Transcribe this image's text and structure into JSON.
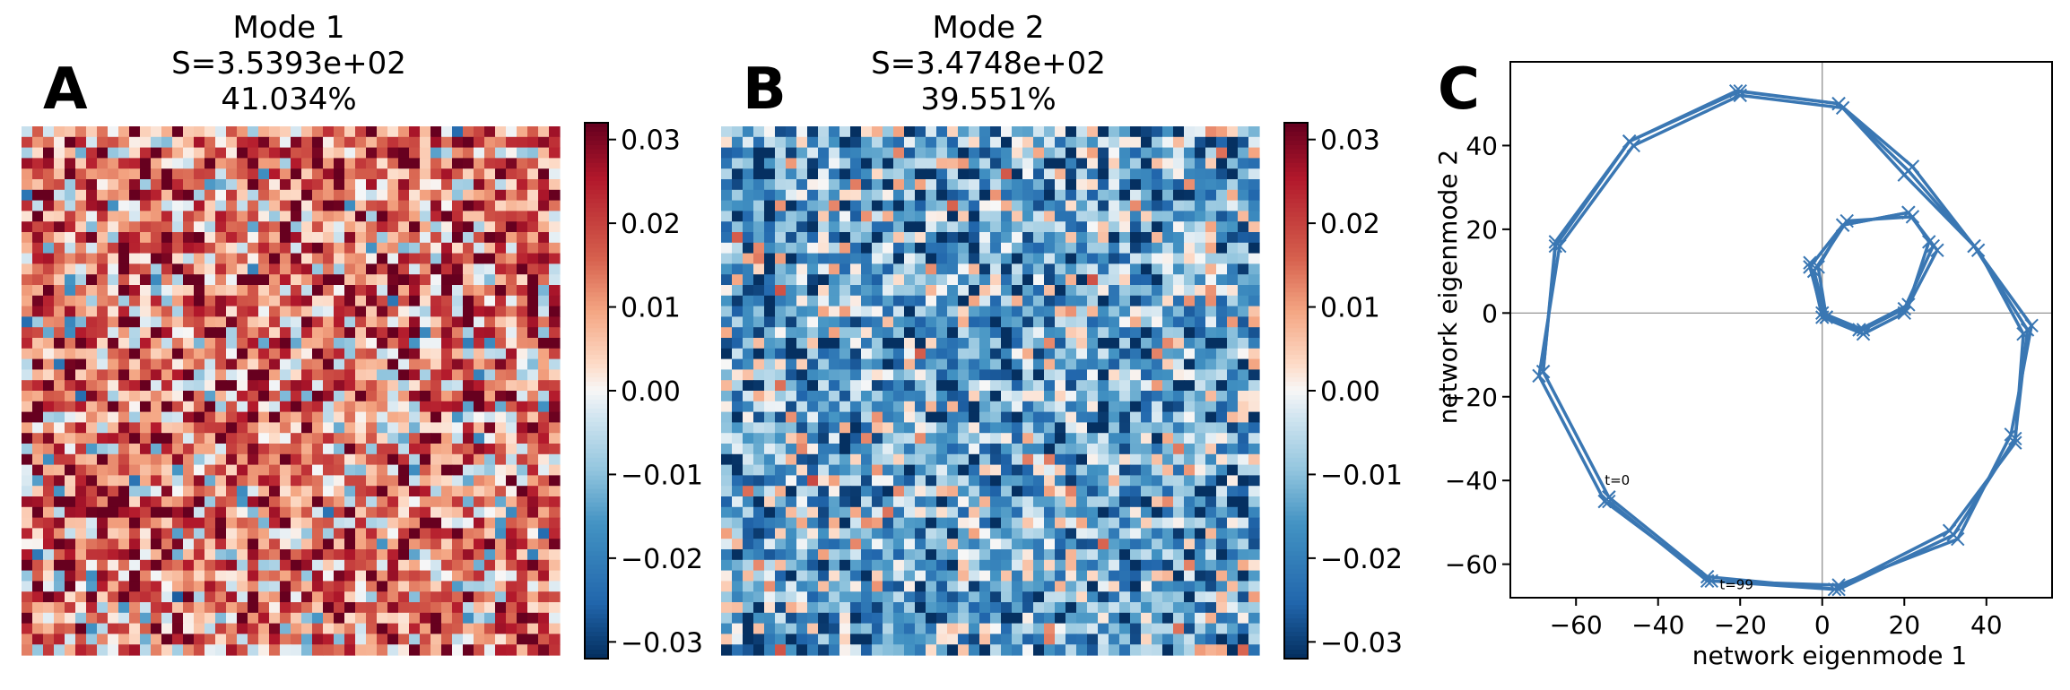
{
  "figure": {
    "panels": [
      "A",
      "B",
      "C"
    ]
  },
  "chart_data": [
    {
      "type": "heatmap",
      "panel_label": "A",
      "title_lines": [
        "Mode 1",
        "S=3.5393e+02",
        "41.034%"
      ],
      "grid": [
        50,
        50
      ],
      "colormap": "RdBu_r",
      "clim": [
        -0.032,
        0.032
      ],
      "colorbar_ticks": [
        "0.03",
        "0.02",
        "0.01",
        "0.00",
        "−0.01",
        "−0.02",
        "−0.03"
      ],
      "colorbar_tick_values": [
        0.03,
        0.02,
        0.01,
        0.0,
        -0.01,
        -0.02,
        -0.03
      ],
      "value_distribution": {
        "mean": 0.013,
        "spread": 0.016,
        "seed": 11
      }
    },
    {
      "type": "heatmap",
      "panel_label": "B",
      "title_lines": [
        "Mode 2",
        "S=3.4748e+02",
        "39.551%"
      ],
      "grid": [
        50,
        50
      ],
      "colormap": "RdBu_r",
      "clim": [
        -0.032,
        0.032
      ],
      "colorbar_ticks": [
        "0.03",
        "0.02",
        "0.01",
        "0.00",
        "−0.01",
        "−0.02",
        "−0.03"
      ],
      "colorbar_tick_values": [
        0.03,
        0.02,
        0.01,
        0.0,
        -0.01,
        -0.02,
        -0.03
      ],
      "value_distribution": {
        "mean": -0.014,
        "spread": 0.015,
        "seed": 29
      }
    },
    {
      "type": "line",
      "panel_label": "C",
      "xlabel": "network eigenmode 1",
      "ylabel": "network eigenmode 2",
      "xlim": [
        -76,
        56
      ],
      "ylim": [
        -68,
        60
      ],
      "xticks": [
        -60,
        -40,
        -20,
        0,
        20,
        40
      ],
      "yticks": [
        -60,
        -40,
        -20,
        0,
        20,
        40
      ],
      "xtick_labels": [
        "−60",
        "−40",
        "−20",
        "0",
        "20",
        "40"
      ],
      "ytick_labels": [
        "−60",
        "−40",
        "−20",
        "0",
        "20",
        "40"
      ],
      "zero_lines": true,
      "color": "#3a77b3",
      "marker": "x",
      "annotations": [
        {
          "text": "t=0",
          "x": -53,
          "y": -41
        },
        {
          "text": "t=99",
          "x": -25,
          "y": -66
        }
      ],
      "series": [
        {
          "points": [
            [
              -52,
              -44
            ],
            [
              -28,
              -63
            ],
            [
              4,
              -66
            ],
            [
              32,
              -53
            ],
            [
              47,
              -30
            ],
            [
              50,
              -4
            ],
            [
              37,
              16
            ],
            [
              21,
              34
            ],
            [
              4,
              50
            ],
            [
              -20,
              53
            ],
            [
              -47,
              41
            ],
            [
              -65,
              17
            ],
            [
              -68,
              -14
            ],
            [
              -52,
              -44
            ]
          ]
        },
        {
          "points": [
            [
              -53,
              -45
            ],
            [
              -27,
              -64
            ],
            [
              3,
              -66
            ],
            [
              31,
              -52
            ],
            [
              47,
              -31
            ],
            [
              49,
              -5
            ],
            [
              38,
              15
            ],
            [
              20,
              33
            ],
            [
              5,
              49
            ],
            [
              -20,
              52
            ],
            [
              -46,
              40
            ],
            [
              -64,
              16
            ],
            [
              -69,
              -15
            ],
            [
              -53,
              -45
            ]
          ]
        },
        {
          "points": [
            [
              -52,
              -45
            ],
            [
              -28,
              -64
            ],
            [
              4,
              -65
            ],
            [
              33,
              -54
            ],
            [
              46,
              -29
            ],
            [
              51,
              -3
            ],
            [
              37,
              16
            ],
            [
              22,
              35
            ],
            [
              4,
              50
            ],
            [
              -21,
              53
            ],
            [
              -47,
              41
            ],
            [
              -65,
              16
            ],
            [
              -68,
              -14
            ]
          ]
        },
        {
          "points": [
            [
              -3,
              11
            ],
            [
              0,
              0
            ],
            [
              10,
              -4
            ],
            [
              20,
              1
            ],
            [
              27,
              16
            ],
            [
              21,
              24
            ],
            [
              5,
              21
            ],
            [
              -3,
              11
            ]
          ]
        },
        {
          "points": [
            [
              -2,
              10
            ],
            [
              1,
              -1
            ],
            [
              9,
              -4
            ],
            [
              21,
              2
            ],
            [
              26,
              17
            ],
            [
              22,
              23
            ],
            [
              6,
              22
            ],
            [
              -2,
              10
            ]
          ]
        },
        {
          "points": [
            [
              -3,
              12
            ],
            [
              0,
              -1
            ],
            [
              10,
              -5
            ],
            [
              20,
              0
            ],
            [
              28,
              15
            ],
            [
              21,
              24
            ],
            [
              5,
              21
            ],
            [
              -1,
              11
            ],
            [
              1,
              -1
            ]
          ]
        }
      ]
    }
  ]
}
